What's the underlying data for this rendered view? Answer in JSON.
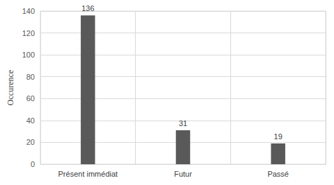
{
  "chart_data": {
    "type": "bar",
    "y_label": "Occurence",
    "categories": [
      "Présent immédiat",
      "Futur",
      "Passé"
    ],
    "values": [
      136,
      31,
      19
    ],
    "color": "#595959",
    "ylim": [
      0,
      140
    ],
    "yticks": [
      0,
      20,
      40,
      60,
      80,
      100,
      120,
      140
    ],
    "grid": true,
    "data_labels": true
  }
}
